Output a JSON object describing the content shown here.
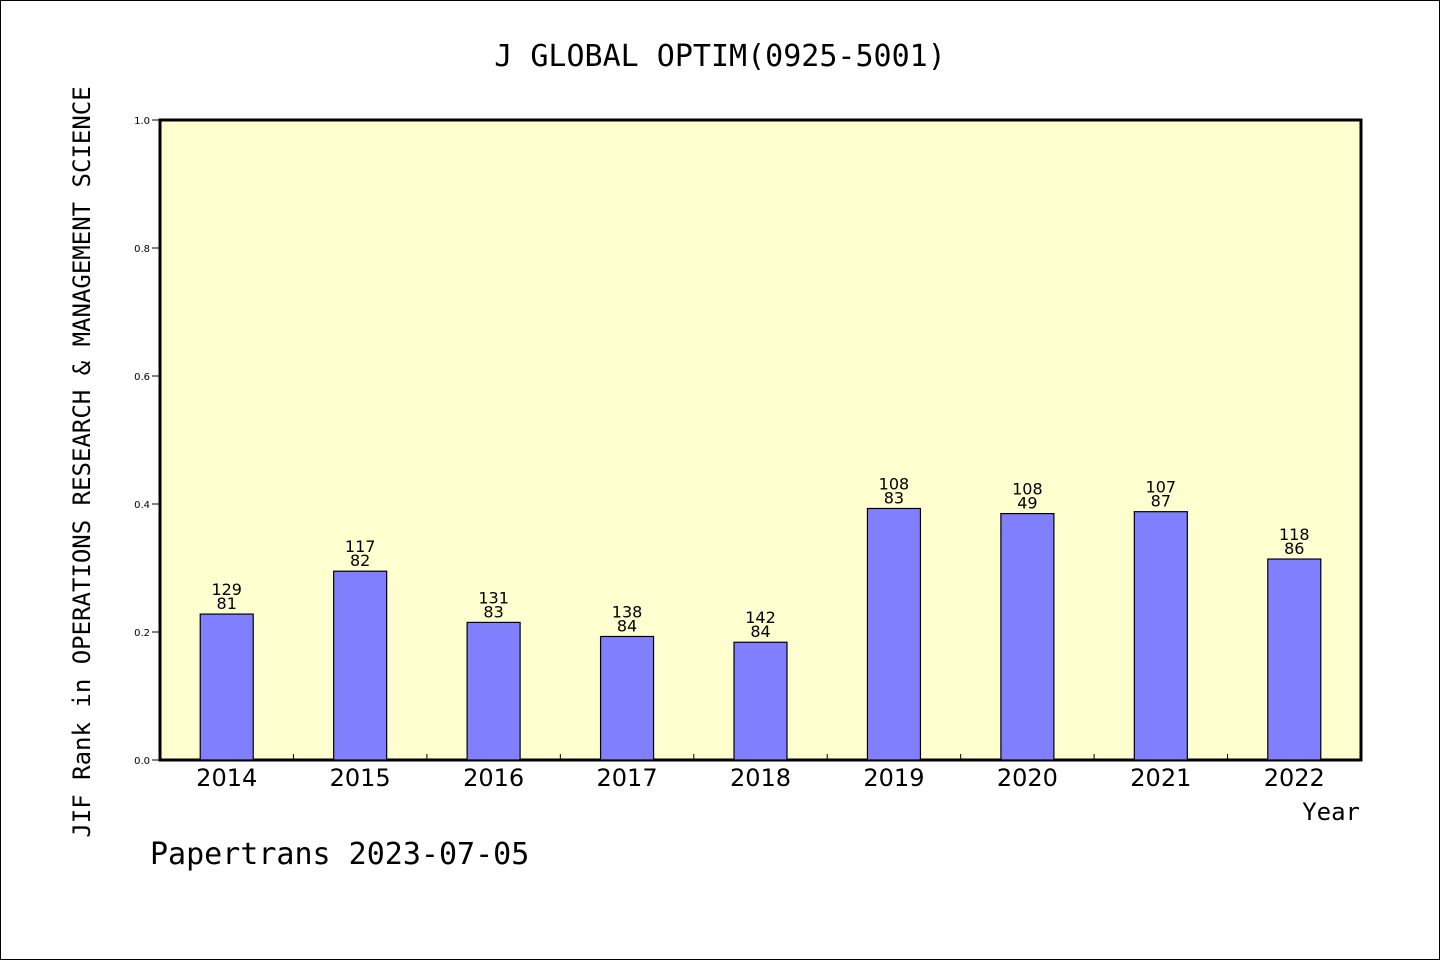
{
  "chart_data": {
    "type": "bar",
    "title": "J GLOBAL OPTIM(0925-5001)",
    "xlabel": "Year",
    "ylabel": "JIF Rank in OPERATIONS RESEARCH & MANAGEMENT SCIENCE",
    "ylim": [
      0,
      1.0
    ],
    "yticks": [
      "0.0",
      "0.2",
      "0.4",
      "0.6",
      "0.8",
      "1.0"
    ],
    "categories": [
      "2014",
      "2015",
      "2016",
      "2017",
      "2018",
      "2019",
      "2020",
      "2021",
      "2022"
    ],
    "values": [
      0.228,
      0.295,
      0.215,
      0.193,
      0.184,
      0.393,
      0.385,
      0.388,
      0.314
    ],
    "label_total": [
      "129",
      "117",
      "131",
      "138",
      "142",
      "108",
      "108",
      "107",
      "118"
    ],
    "label_rank": [
      "81",
      "82",
      "83",
      "84",
      "84",
      "83",
      "49",
      "87",
      "86"
    ],
    "grid": false,
    "colors": {
      "bar": "#8080ff",
      "plot_bg": "#ffffd0"
    }
  },
  "footer": "Papertrans 2023-07-05"
}
